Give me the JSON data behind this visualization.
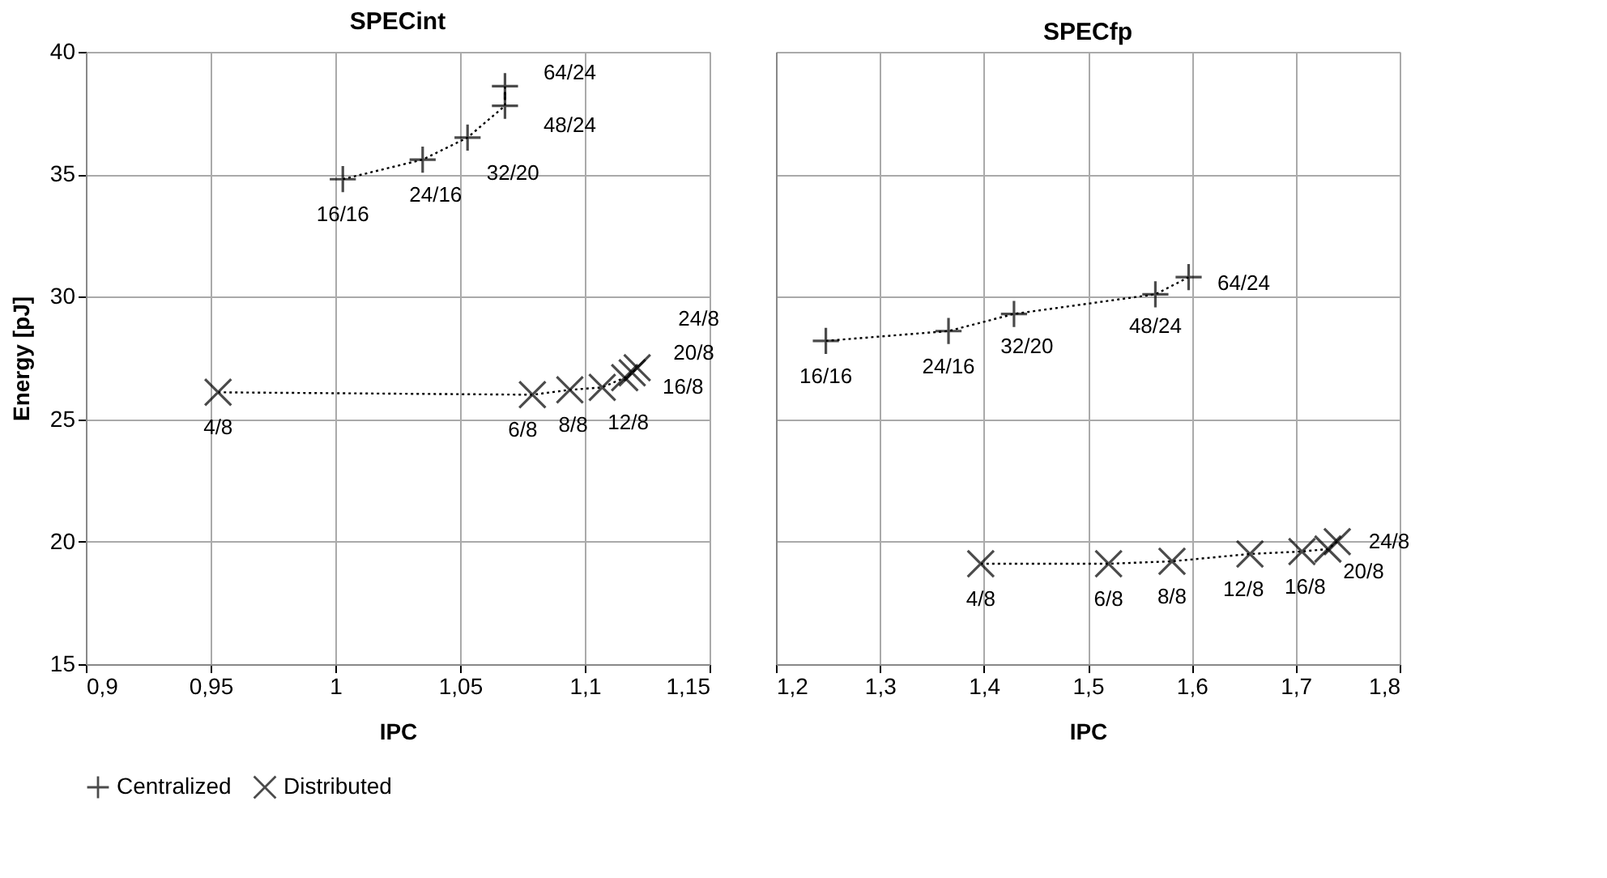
{
  "chart_data": [
    {
      "type": "line",
      "title": "SPECint",
      "xlabel": "IPC",
      "ylabel": "Energy [pJ]",
      "xlim": [
        0.9,
        1.15
      ],
      "xticks": [
        {
          "value": 0.9,
          "label": "0,9"
        },
        {
          "value": 0.95,
          "label": "0,95"
        },
        1,
        {
          "value": 1.05,
          "label": "1,05"
        },
        {
          "value": 1.1,
          "label": "1,1"
        },
        {
          "value": 1.15,
          "label": "1,15"
        }
      ],
      "ylim": [
        15,
        40
      ],
      "yticks": [
        15,
        20,
        25,
        30,
        35,
        40
      ],
      "grid": true,
      "legend": "bottom",
      "line_style": "dotted",
      "series": [
        {
          "name": "Centralized",
          "color": "#000000",
          "marker": "cross",
          "x": [
            1.003,
            1.035,
            1.053,
            1.068,
            1.068
          ],
          "values": [
            34.8,
            35.6,
            36.5,
            37.8,
            38.6
          ]
        },
        {
          "name": "Distributed",
          "color": "#000000",
          "marker": "x",
          "x": [
            0.953,
            1.079,
            1.094,
            1.107,
            1.116,
            1.119,
            1.121
          ],
          "values": [
            26.1,
            26.0,
            26.2,
            26.3,
            26.7,
            26.9,
            27.1
          ]
        }
      ],
      "annotations": [
        {
          "text": "16/16",
          "x": 1.003,
          "y": 34.8
        },
        {
          "text": "24/16",
          "x": 1.035,
          "y": 35.6
        },
        {
          "text": "32/20",
          "x": 1.053,
          "y": 36.5
        },
        {
          "text": "48/24",
          "x": 1.068,
          "y": 37.8
        },
        {
          "text": "64/24",
          "x": 1.068,
          "y": 38.6
        },
        {
          "text": "4/8",
          "x": 0.953,
          "y": 26.1
        },
        {
          "text": "6/8",
          "x": 1.079,
          "y": 26.0
        },
        {
          "text": "8/8",
          "x": 1.094,
          "y": 26.2
        },
        {
          "text": "12/8",
          "x": 1.107,
          "y": 26.3
        },
        {
          "text": "16/8",
          "x": 1.116,
          "y": 26.7
        },
        {
          "text": "20/8",
          "x": 1.119,
          "y": 26.9
        },
        {
          "text": "24/8",
          "x": 1.121,
          "y": 27.1
        }
      ]
    },
    {
      "type": "line",
      "title": "SPECfp",
      "xlabel": "IPC",
      "xlim": [
        1.2,
        1.8
      ],
      "xticks": [
        {
          "value": 1.2,
          "label": "1,2"
        },
        {
          "value": 1.3,
          "label": "1,3"
        },
        {
          "value": 1.4,
          "label": "1,4"
        },
        {
          "value": 1.5,
          "label": "1,5"
        },
        {
          "value": 1.6,
          "label": "1,6"
        },
        {
          "value": 1.7,
          "label": "1,7"
        },
        {
          "value": 1.8,
          "label": "1,8"
        }
      ],
      "ylim": [
        15,
        40
      ],
      "yticks": [
        15,
        20,
        25,
        30,
        35,
        40
      ],
      "tick_labels": "x",
      "grid": true,
      "line_style": "dotted",
      "series": [
        {
          "name": "Centralized",
          "color": "#000000",
          "marker": "cross",
          "x": [
            1.248,
            1.366,
            1.429,
            1.565,
            1.597
          ],
          "values": [
            28.2,
            28.6,
            29.3,
            30.1,
            30.8
          ]
        },
        {
          "name": "Distributed",
          "color": "#000000",
          "marker": "x",
          "x": [
            1.397,
            1.52,
            1.581,
            1.656,
            1.706,
            1.731,
            1.74
          ],
          "values": [
            19.1,
            19.1,
            19.2,
            19.5,
            19.6,
            19.7,
            20.0
          ]
        }
      ],
      "annotations": [
        {
          "text": "16/16",
          "x": 1.248,
          "y": 28.2
        },
        {
          "text": "24/16",
          "x": 1.366,
          "y": 28.6
        },
        {
          "text": "32/20",
          "x": 1.429,
          "y": 29.3
        },
        {
          "text": "48/24",
          "x": 1.565,
          "y": 30.1
        },
        {
          "text": "64/24",
          "x": 1.597,
          "y": 30.8
        },
        {
          "text": "4/8",
          "x": 1.397,
          "y": 19.1
        },
        {
          "text": "6/8",
          "x": 1.52,
          "y": 19.1
        },
        {
          "text": "8/8",
          "x": 1.581,
          "y": 19.2
        },
        {
          "text": "12/8",
          "x": 1.656,
          "y": 19.5
        },
        {
          "text": "16/8",
          "x": 1.706,
          "y": 19.6
        },
        {
          "text": "20/8",
          "x": 1.731,
          "y": 19.7
        },
        {
          "text": "24/8",
          "x": 1.74,
          "y": 20.0
        }
      ]
    }
  ]
}
